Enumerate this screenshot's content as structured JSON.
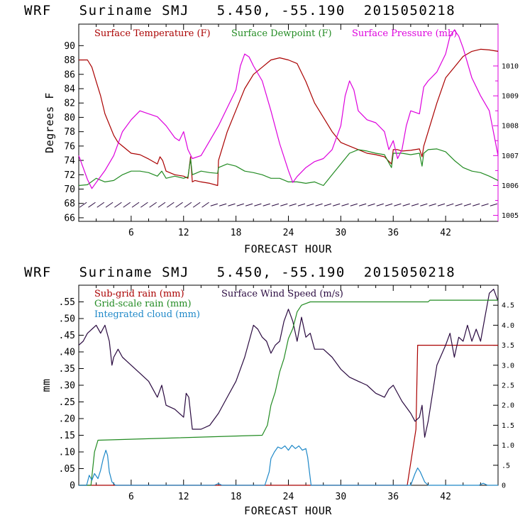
{
  "chart_data": [
    {
      "type": "line",
      "title": "WRF   Suriname SMJ   5.450, -55.190  2015050218",
      "xlabel": "FORECAST HOUR",
      "ylabel": "Degrees F",
      "xlim": [
        0,
        48
      ],
      "ylim": [
        65.5,
        93
      ],
      "y2lim": [
        1004.8,
        1011.4
      ],
      "x_ticks": [
        6,
        12,
        18,
        24,
        30,
        36,
        42
      ],
      "y_ticks": [
        66,
        68,
        70,
        72,
        74,
        76,
        78,
        80,
        82,
        84,
        86,
        88,
        90
      ],
      "y2_ticks": [
        1005,
        1006,
        1007,
        1008,
        1009,
        1010
      ],
      "series": [
        {
          "name": "Surface Temperature (F)",
          "axis": "left",
          "color": "#aa0000",
          "x": [
            0,
            0.5,
            1,
            1.5,
            2,
            2.5,
            3,
            3.5,
            4,
            4.5,
            5,
            6,
            7,
            8,
            9,
            9.3,
            9.6,
            10,
            11,
            12,
            12.5,
            12.8,
            13,
            13.3,
            14,
            15,
            15.9,
            16,
            17,
            18,
            19,
            20,
            21,
            22,
            23,
            24,
            25,
            26,
            27,
            28,
            29,
            30,
            31,
            32,
            33,
            34,
            35,
            35.8,
            36,
            36.5,
            37,
            38,
            39,
            39.3,
            39.5,
            40,
            41,
            42,
            43,
            44,
            45,
            46,
            47,
            48
          ],
          "y": [
            88,
            88,
            88,
            87,
            85,
            83,
            80.5,
            79,
            77.5,
            76.5,
            76,
            75,
            74.8,
            74.2,
            73.5,
            74.5,
            74,
            72.5,
            72,
            71.8,
            71.5,
            74.5,
            71,
            71.2,
            71,
            70.8,
            70.5,
            74,
            78,
            81,
            84,
            86,
            87,
            88,
            88.3,
            88,
            87.5,
            85,
            82,
            80,
            78,
            76.5,
            76,
            75.5,
            75,
            74.8,
            74.5,
            73.5,
            75.5,
            75.5,
            75.3,
            75.4,
            75.6,
            74.5,
            76,
            78,
            82,
            85.5,
            87,
            88.5,
            89.2,
            89.5,
            89.4,
            89.2
          ]
        },
        {
          "name": "Surface Dewpoint (F)",
          "axis": "left",
          "color": "#228b22",
          "x": [
            0,
            1,
            2,
            3,
            4,
            5,
            6,
            7,
            8,
            9,
            9.5,
            10,
            11,
            12,
            12.5,
            12.8,
            13,
            14,
            15,
            15.9,
            16,
            17,
            18,
            19,
            20,
            21,
            22,
            23,
            24,
            25,
            26,
            27,
            28,
            29,
            30,
            31,
            32,
            33,
            34,
            35,
            35.8,
            36,
            37,
            38,
            39,
            39.3,
            39.5,
            40,
            41,
            42,
            43,
            44,
            45,
            46,
            47,
            48
          ],
          "y": [
            70.5,
            70.6,
            71.5,
            71,
            71.2,
            72,
            72.5,
            72.5,
            72.3,
            71.8,
            72.5,
            71.5,
            71.8,
            71.5,
            71.7,
            74.2,
            72,
            72.5,
            72.3,
            72.2,
            73,
            73.5,
            73.2,
            72.5,
            72.3,
            72,
            71.5,
            71.5,
            71,
            71,
            70.8,
            71,
            70.5,
            72,
            73.5,
            75,
            75.5,
            75.3,
            75,
            74.8,
            73,
            75,
            75,
            74.8,
            75,
            73.2,
            75,
            75.5,
            75.6,
            75.2,
            74,
            73,
            72.5,
            72.3,
            71.8,
            71.2
          ]
        },
        {
          "name": "Surface Pressure (mb)",
          "axis": "right",
          "color": "#dd00dd",
          "x": [
            0,
            1,
            1.5,
            2,
            3,
            4,
            5,
            6,
            7,
            8,
            9,
            10,
            11,
            11.5,
            12,
            12.5,
            13,
            14,
            15,
            16,
            17,
            18,
            18.5,
            19,
            19.5,
            20,
            21,
            22,
            23,
            24,
            24.5,
            25,
            26,
            27,
            28,
            29,
            30,
            30.5,
            31,
            31.5,
            32,
            33,
            34,
            35,
            35.5,
            36,
            36.5,
            37,
            37.5,
            38,
            39,
            39.5,
            40,
            41,
            42,
            42.5,
            43,
            43.5,
            44,
            45,
            46,
            47,
            48
          ],
          "y": [
            1007,
            1006.2,
            1005.9,
            1006.1,
            1006.5,
            1007,
            1007.8,
            1008.2,
            1008.5,
            1008.4,
            1008.3,
            1008,
            1007.6,
            1007.5,
            1007.8,
            1007.2,
            1006.9,
            1007,
            1007.5,
            1008,
            1008.6,
            1009.2,
            1010,
            1010.4,
            1010.3,
            1010,
            1009.5,
            1008.5,
            1007.4,
            1006.5,
            1006.1,
            1006.3,
            1006.6,
            1006.8,
            1006.9,
            1007.2,
            1008,
            1009,
            1009.5,
            1009.2,
            1008.5,
            1008.2,
            1008.1,
            1007.8,
            1007.2,
            1007.5,
            1006.9,
            1007.2,
            1008,
            1008.5,
            1008.4,
            1009.3,
            1009.5,
            1009.8,
            1010.4,
            1011,
            1011.2,
            1011,
            1010.6,
            1009.6,
            1009,
            1008.5,
            1007
          ]
        }
      ],
      "wind_barbs": {
        "x_start": 0.5,
        "x_end": 47.5,
        "step": 1,
        "y": 67.8
      }
    },
    {
      "type": "line",
      "title": "WRF   Suriname SMJ   5.450, -55.190  2015050218",
      "xlabel": "FORECAST HOUR",
      "ylabel": "mm",
      "xlim": [
        0,
        48
      ],
      "ylim": [
        0,
        0.6
      ],
      "y2lim": [
        0,
        5
      ],
      "x_ticks": [
        6,
        12,
        18,
        24,
        30,
        36,
        42
      ],
      "y_ticks": [
        0,
        0.05,
        0.1,
        0.15,
        0.2,
        0.25,
        0.3,
        0.35,
        0.4,
        0.45,
        0.5,
        0.55
      ],
      "y_tick_labels": [
        "0",
        ".05",
        ".10",
        ".15",
        ".20",
        ".25",
        ".30",
        ".35",
        ".40",
        ".45",
        ".50",
        ".55"
      ],
      "y2_ticks": [
        0,
        0.5,
        1.0,
        1.5,
        2.0,
        2.5,
        3.0,
        3.5,
        4.0,
        4.5
      ],
      "y2_tick_labels": [
        "0",
        ".5",
        "1.0",
        "1.5",
        "2.0",
        "2.5",
        "3.0",
        "3.5",
        "4.0",
        "4.5"
      ],
      "series": [
        {
          "name": "Sub-grid rain (mm)",
          "axis": "right",
          "color": "#aa0000",
          "x": [
            0,
            37.6,
            38.6,
            38.8,
            48
          ],
          "y": [
            0,
            0,
            1.4,
            3.5,
            3.5
          ]
        },
        {
          "name": "Surface Wind Speed (m/s)",
          "axis": "right",
          "color": "#2a0a40",
          "x": [
            0,
            0.5,
            1,
            1.5,
            2,
            2.5,
            3,
            3.5,
            3.8,
            4,
            4.5,
            5,
            6,
            7,
            8,
            9,
            9.5,
            9.8,
            10,
            11,
            12,
            12.3,
            12.6,
            13,
            14,
            15,
            16,
            17,
            18,
            19,
            19.5,
            20,
            20.5,
            21,
            21.5,
            22,
            22.5,
            23,
            23.5,
            24,
            24.5,
            25,
            25.5,
            26,
            26.5,
            27,
            28,
            29,
            30,
            31,
            32,
            33,
            34,
            35,
            35.5,
            36,
            37,
            38,
            38.5,
            39,
            39.3,
            39.6,
            40,
            40.5,
            41,
            42,
            42.5,
            43,
            43.5,
            44,
            44.5,
            45,
            45.5,
            46,
            46.5,
            47,
            47.5,
            48
          ],
          "y": [
            3.5,
            3.6,
            3.8,
            3.9,
            4.0,
            3.8,
            4.0,
            3.6,
            3.0,
            3.2,
            3.4,
            3.2,
            3.0,
            2.8,
            2.6,
            2.2,
            2.5,
            2.2,
            2.0,
            1.9,
            1.7,
            2.3,
            2.2,
            1.4,
            1.4,
            1.5,
            1.8,
            2.2,
            2.6,
            3.2,
            3.6,
            4.0,
            3.9,
            3.7,
            3.6,
            3.3,
            3.5,
            3.6,
            4.1,
            4.4,
            4.1,
            3.6,
            4.2,
            3.7,
            3.8,
            3.4,
            3.4,
            3.2,
            2.9,
            2.7,
            2.6,
            2.5,
            2.3,
            2.2,
            2.4,
            2.5,
            2.1,
            1.8,
            1.6,
            1.7,
            2.0,
            1.2,
            1.6,
            2.3,
            3.0,
            3.5,
            3.8,
            3.2,
            3.7,
            3.6,
            4.0,
            3.6,
            3.9,
            3.6,
            4.2,
            4.8,
            4.9,
            4.6
          ]
        },
        {
          "name": "Grid-scale rain (mm)",
          "axis": "left",
          "color": "#228b22",
          "x": [
            0,
            1.4,
            1.8,
            2.2,
            21,
            21.6,
            22,
            22.5,
            23,
            23.5,
            24,
            24.5,
            25,
            25.5,
            26,
            26.5,
            40,
            40.2,
            48
          ],
          "y": [
            0,
            0,
            0.1,
            0.135,
            0.15,
            0.18,
            0.24,
            0.28,
            0.34,
            0.38,
            0.44,
            0.47,
            0.52,
            0.54,
            0.545,
            0.55,
            0.55,
            0.555,
            0.555
          ]
        },
        {
          "name": "Integrated cloud (mm)",
          "axis": "left",
          "color": "#1e88c8",
          "x": [
            0,
            0.9,
            1.2,
            1.5,
            1.8,
            2.2,
            2.5,
            2.8,
            3.1,
            3.3,
            3.5,
            3.8,
            4.2,
            15.5,
            16,
            16.4,
            21.3,
            21.8,
            22,
            22.4,
            22.8,
            23.2,
            23.6,
            24,
            24.4,
            24.8,
            25.2,
            25.6,
            26,
            26.2,
            26.6,
            38,
            38.5,
            38.8,
            39.1,
            39.6,
            40,
            45.8,
            46.3,
            46.8,
            48
          ],
          "y": [
            0,
            0,
            0.03,
            0.015,
            0.035,
            0.02,
            0.045,
            0.08,
            0.105,
            0.09,
            0.04,
            0.01,
            0,
            0,
            0.005,
            0,
            0,
            0.04,
            0.08,
            0.1,
            0.115,
            0.11,
            0.118,
            0.105,
            0.12,
            0.11,
            0.118,
            0.105,
            0.11,
            0.085,
            0,
            0,
            0.035,
            0.052,
            0.04,
            0.01,
            0,
            0,
            0.006,
            0,
            0
          ]
        }
      ]
    }
  ],
  "colors": {
    "temperature": "#aa0000",
    "dewpoint": "#228b22",
    "pressure": "#dd00dd",
    "subgrid_rain": "#aa0000",
    "wind_speed": "#2a0a40",
    "gridscale_rain": "#228b22",
    "cloud": "#1e88c8",
    "barb": "#2a0a40"
  }
}
